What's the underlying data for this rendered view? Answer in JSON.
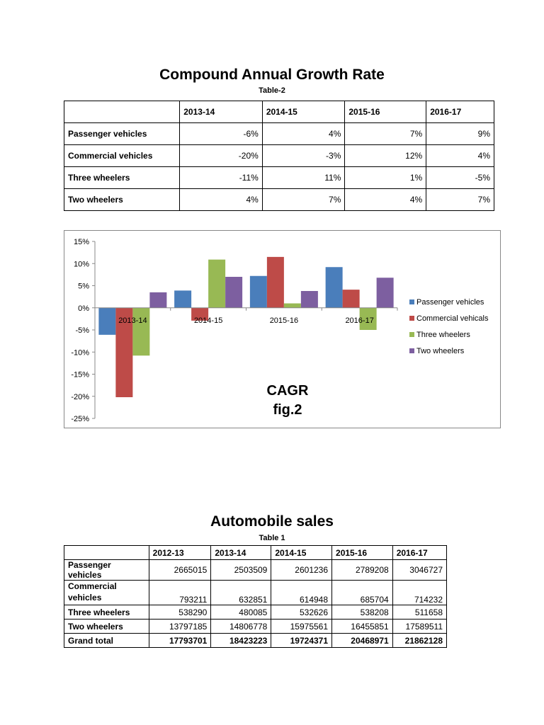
{
  "cagr": {
    "title": "Compound Annual Growth Rate",
    "caption": "Table-2",
    "columns": [
      "2013-14",
      "2014-15",
      "2015-16",
      "2016-17"
    ],
    "rows": [
      {
        "label": "Passenger vehicles",
        "values": [
          "-6%",
          "4%",
          "7%",
          "9%"
        ]
      },
      {
        "label": "Commercial vehicles",
        "values": [
          "-20%",
          "-3%",
          "12%",
          "4%"
        ]
      },
      {
        "label": "Three wheelers",
        "values": [
          "-11%",
          "11%",
          "1%",
          "-5%"
        ]
      },
      {
        "label": "Two wheelers",
        "values": [
          "4%",
          "7%",
          "4%",
          "7%"
        ]
      }
    ]
  },
  "chart_data": {
    "type": "bar",
    "title": "CAGR",
    "subtitle": "fig.2",
    "categories": [
      "2013-14",
      "2014-15",
      "2015-16",
      "2016-17"
    ],
    "ylim": [
      -25,
      15
    ],
    "yticks": [
      "15%",
      "10%",
      "5%",
      "0%",
      "-5%",
      "-10%",
      "-15%",
      "-20%",
      "-25%"
    ],
    "legend_position": "right",
    "grid": false,
    "series": [
      {
        "name": "Passenger vehicles",
        "color": "#4a7ebb",
        "values": [
          -6.1,
          3.9,
          7.2,
          9.2
        ]
      },
      {
        "name": "Commercial vehicals",
        "color": "#be4b48",
        "values": [
          -20.2,
          -2.9,
          11.5,
          4.1
        ]
      },
      {
        "name": "Three wheelers",
        "color": "#98b954",
        "values": [
          -10.8,
          10.9,
          1.0,
          -5.0
        ]
      },
      {
        "name": "Two wheelers",
        "color": "#7d5fa0",
        "values": [
          3.5,
          7.0,
          3.8,
          6.8
        ]
      }
    ]
  },
  "sales": {
    "title": "Automobile sales",
    "caption": "Table 1",
    "columns": [
      "2012-13",
      "2013-14",
      "2014-15",
      "2015-16",
      "2016-17"
    ],
    "rows": [
      {
        "label": "Passenger vehicles",
        "values": [
          "2665015",
          "2503509",
          "2601236",
          "2789208",
          "3046727"
        ]
      },
      {
        "label": "Commercial vehicles",
        "values": [
          "793211",
          "632851",
          "614948",
          "685704",
          "714232"
        ]
      },
      {
        "label": "Three wheelers",
        "values": [
          "538290",
          "480085",
          "532626",
          "538208",
          "511658"
        ]
      },
      {
        "label": "Two wheelers",
        "values": [
          "13797185",
          "14806778",
          "15975561",
          "16455851",
          "17589511"
        ]
      },
      {
        "label": "Grand total",
        "values": [
          "17793701",
          "18423223",
          "19724371",
          "20468971",
          "21862128"
        ],
        "bold": true
      }
    ]
  }
}
